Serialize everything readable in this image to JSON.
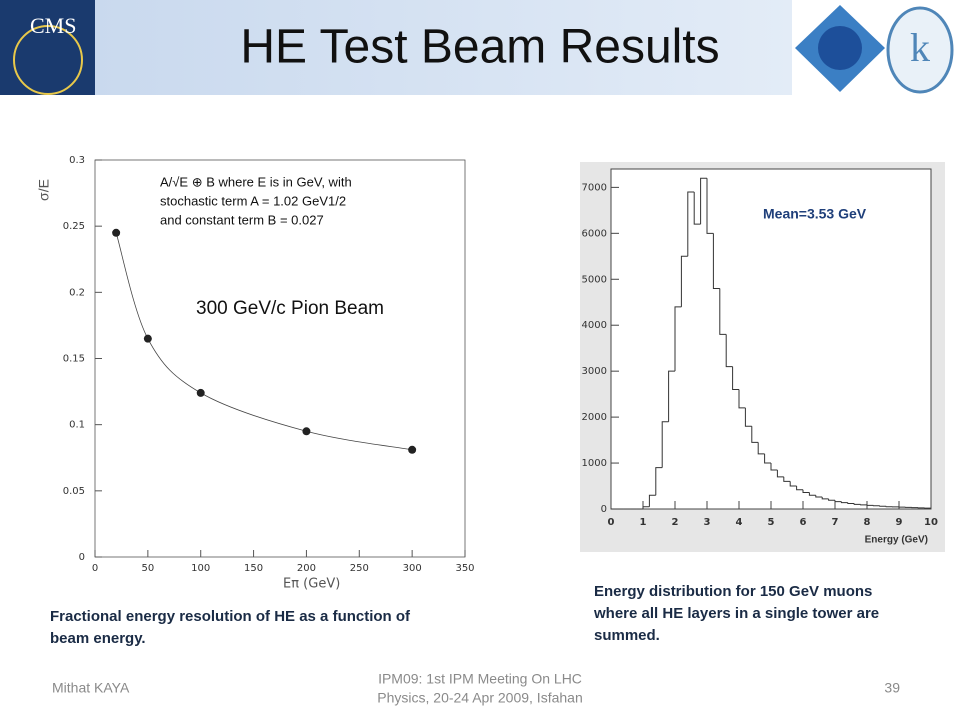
{
  "title": "HE Test Beam Results",
  "cms_logo": "CMS",
  "footer": {
    "author": "Mithat KAYA",
    "event": [
      "IPM09: 1st IPM Meeting On LHC",
      "Physics, 20-24 Apr 2009, Isfahan"
    ],
    "page": "39"
  },
  "captions": {
    "left": [
      "Fractional energy resolution of HE as a function of",
      "beam energy."
    ],
    "right": [
      "Energy distribution for 150 GeV muons",
      "where all HE layers in a single tower are",
      "summed."
    ]
  },
  "chart_data": [
    {
      "type": "scatter",
      "y_label": "σ/E",
      "x_label": "Eπ (GeV)",
      "annotations": [
        "A/√E ⊕ B where E is in GeV, with",
        "stochastic term A = 1.02 GeV1/2",
        "and constant term B = 0.027",
        "300 GeV/c Pion Beam"
      ],
      "x": [
        20,
        50,
        100,
        200,
        300
      ],
      "values": [
        0.245,
        0.165,
        0.124,
        0.095,
        0.081
      ],
      "color": "#222222",
      "xlim": [
        0,
        350
      ],
      "xticks": [
        0,
        50,
        100,
        150,
        200,
        250,
        300,
        350
      ],
      "ylim": [
        0,
        0.3
      ],
      "yticks": [
        0,
        0.05,
        0.1,
        0.15,
        0.2,
        0.25,
        0.3
      ]
    },
    {
      "type": "histogram",
      "x_label": "Energy (GeV)",
      "annotation": "Mean=3.53 GeV",
      "bins": [
        0,
        0.2,
        0.4,
        0.6,
        0.8,
        1,
        1.2,
        1.4,
        1.6,
        1.8,
        2,
        2.2,
        2.4,
        2.6,
        2.8,
        3,
        3.2,
        3.4,
        3.6,
        3.8,
        4,
        4.2,
        4.4,
        4.6,
        4.8,
        5,
        5.2,
        5.4,
        5.6,
        5.8,
        6,
        6.2,
        6.4,
        6.6,
        6.8,
        7,
        7.2,
        7.4,
        7.6,
        7.8,
        8,
        8.2,
        8.4,
        8.6,
        8.8,
        9,
        9.2,
        9.4,
        9.6,
        9.8,
        10
      ],
      "counts": [
        0,
        0,
        0,
        0,
        0,
        50,
        300,
        900,
        1900,
        3000,
        4400,
        5500,
        6900,
        6200,
        7200,
        6000,
        4800,
        3800,
        3100,
        2600,
        2200,
        1800,
        1450,
        1200,
        1000,
        850,
        700,
        600,
        500,
        420,
        360,
        300,
        260,
        220,
        190,
        160,
        140,
        120,
        100,
        90,
        80,
        70,
        60,
        50,
        45,
        40,
        35,
        30,
        25,
        20
      ],
      "color": "#333333",
      "xlim": [
        0,
        10
      ],
      "xticks": [
        0,
        1,
        2,
        3,
        4,
        5,
        6,
        7,
        8,
        9,
        10
      ],
      "ylim": [
        0,
        7400
      ],
      "yticks": [
        0,
        1000,
        2000,
        3000,
        4000,
        5000,
        6000,
        7000
      ]
    }
  ]
}
